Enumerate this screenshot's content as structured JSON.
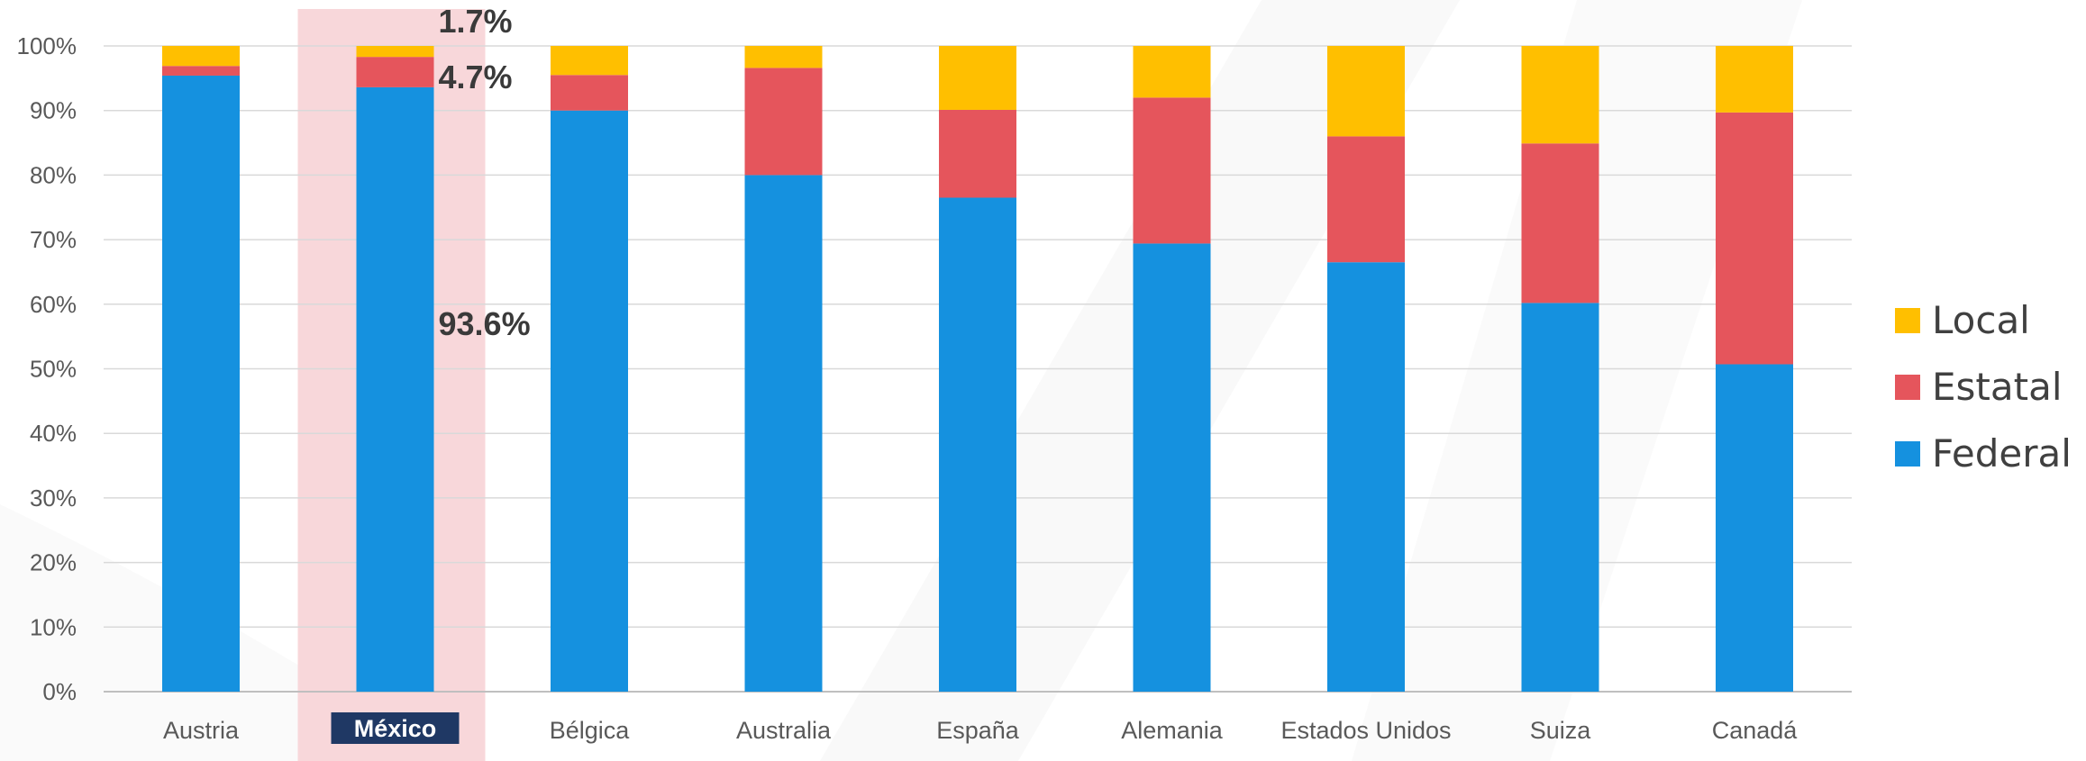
{
  "chart_data": {
    "type": "bar",
    "stacked": true,
    "title": "",
    "xlabel": "",
    "ylabel": "",
    "ylim": [
      0,
      100
    ],
    "yticks": [
      "0%",
      "10%",
      "20%",
      "30%",
      "40%",
      "50%",
      "60%",
      "70%",
      "80%",
      "90%",
      "100%"
    ],
    "grid": true,
    "legend_position": "right",
    "categories": [
      "Austria",
      "México",
      "Bélgica",
      "Australia",
      "España",
      "Alemania",
      "Estados Unidos",
      "Suiza",
      "Canadá"
    ],
    "highlight_category": "México",
    "series": [
      {
        "name": "Federal",
        "color": "#1591DF",
        "values": [
          95.4,
          93.6,
          90.0,
          80.0,
          76.5,
          69.4,
          66.5,
          60.2,
          50.7
        ]
      },
      {
        "name": "Estatal",
        "color": "#E5555C",
        "values": [
          1.5,
          4.7,
          5.5,
          16.6,
          13.6,
          22.6,
          19.5,
          24.7,
          39.0
        ]
      },
      {
        "name": "Local",
        "color": "#FFBF00",
        "values": [
          3.1,
          1.7,
          4.5,
          3.4,
          9.9,
          8.0,
          14.0,
          15.1,
          10.3
        ]
      }
    ],
    "annotations": [
      {
        "category": "México",
        "series": "Local",
        "text": "1.7%"
      },
      {
        "category": "México",
        "series": "Estatal",
        "text": "4.7%"
      },
      {
        "category": "México",
        "series": "Federal",
        "text": "93.6%"
      }
    ],
    "legend_order": [
      "Local",
      "Estatal",
      "Federal"
    ],
    "colors": {
      "highlight_band": "#F7D3D6",
      "highlight_label_bg": "#1F3864",
      "grid": "#D9D9D9",
      "axis": "#BFBFBF"
    }
  }
}
